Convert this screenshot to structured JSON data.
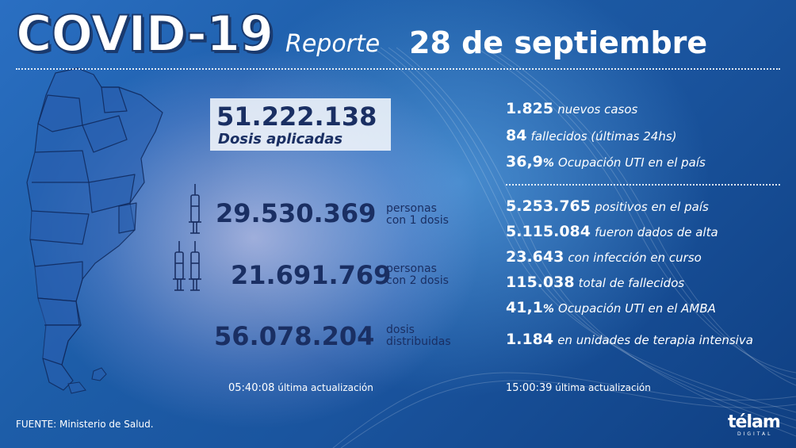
{
  "header": {
    "title": "COVID-19",
    "reporte": "Reporte",
    "date": "28 de septiembre"
  },
  "vaccination": {
    "dosis_aplicadas_value": "51.222.138",
    "dosis_aplicadas_label": "Dosis aplicadas",
    "una_dosis_value": "29.530.369",
    "una_dosis_label_1": "personas",
    "una_dosis_label_2": "con 1 dosis",
    "dos_dosis_value": "21.691.769",
    "dos_dosis_label_1": "personas",
    "dos_dosis_label_2": "con 2 dosis",
    "distribuidas_value": "56.078.204",
    "distribuidas_label_1": "dosis",
    "distribuidas_label_2": "distribuidas",
    "update_time": "05:40:08",
    "update_label": "última actualización"
  },
  "daily": [
    {
      "value": "1.825",
      "label": "nuevos casos"
    },
    {
      "value": "84",
      "label": "fallecidos (últimas 24hs)"
    },
    {
      "value": "36,9",
      "unit": "%",
      "label": "Ocupación UTI en el país"
    }
  ],
  "totals": [
    {
      "value": "5.253.765",
      "label": "positivos en el país"
    },
    {
      "value": "5.115.084",
      "label": "fueron dados de alta"
    },
    {
      "value": "23.643",
      "label": "con infección en curso"
    },
    {
      "value": "115.038",
      "label": "total de fallecidos"
    },
    {
      "value": "41,1",
      "unit": "%",
      "label": "Ocupación UTI en el AMBA"
    },
    {
      "value": "1.184",
      "label": "en unidades de terapia intensiva"
    }
  ],
  "stats_update": {
    "time": "15:00:39",
    "label": "última actualización"
  },
  "footer": {
    "source": "FUENTE: Ministerio de Salud.",
    "brand": "télam",
    "brand_sub": "DIGITAL"
  },
  "colors": {
    "navy": "#1a2f63",
    "background": "#1d5da8",
    "white": "#ffffff"
  }
}
